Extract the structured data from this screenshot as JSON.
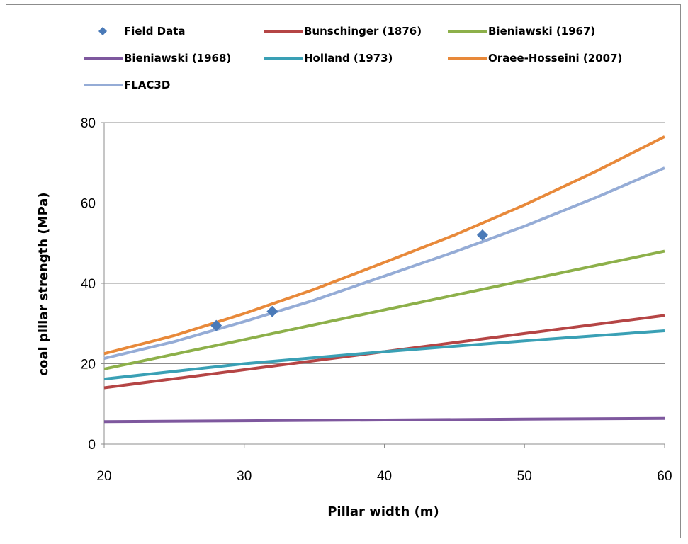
{
  "chart_data": {
    "type": "line",
    "xlabel": "Pillar width (m)",
    "ylabel": "coal pillar strength (MPa)",
    "xlim": [
      20,
      60
    ],
    "ylim": [
      0,
      80
    ],
    "x_ticks": [
      20,
      30,
      40,
      50,
      60
    ],
    "y_ticks": [
      0,
      20,
      40,
      60,
      80
    ],
    "grid": "horizontal",
    "legend_position": "top",
    "series": [
      {
        "name": "Field Data",
        "kind": "scatter",
        "marker": "diamond",
        "color": "#4a7ab8",
        "x": [
          28,
          32,
          47
        ],
        "y": [
          29.5,
          33.0,
          52.0
        ]
      },
      {
        "name": "Bunschinger (1876)",
        "kind": "line",
        "color": "#b54545",
        "x": [
          20,
          30,
          40,
          50,
          60
        ],
        "y": [
          14.0,
          18.5,
          23.0,
          27.5,
          32.0
        ]
      },
      {
        "name": "Bieniawski (1967)",
        "kind": "line",
        "color": "#8db04a",
        "x": [
          20,
          30,
          40,
          50,
          60
        ],
        "y": [
          18.7,
          26.0,
          33.4,
          40.7,
          48.0
        ]
      },
      {
        "name": "Bieniawski (1968)",
        "kind": "line",
        "color": "#7e589e",
        "x": [
          20,
          30,
          40,
          50,
          60
        ],
        "y": [
          5.6,
          5.8,
          6.0,
          6.2,
          6.4
        ]
      },
      {
        "name": "Holland (1973)",
        "kind": "line",
        "color": "#3aa0b5",
        "x": [
          20,
          30,
          40,
          50,
          60
        ],
        "y": [
          16.2,
          20.0,
          23.0,
          25.7,
          28.2
        ]
      },
      {
        "name": "Oraee-Hosseini (2007)",
        "kind": "line",
        "color": "#e8893a",
        "x": [
          20,
          25,
          30,
          35,
          40,
          45,
          50,
          55,
          60
        ],
        "y": [
          22.5,
          27.0,
          32.5,
          38.5,
          45.2,
          52.0,
          59.5,
          67.7,
          76.5
        ]
      },
      {
        "name": "FLAC3D",
        "kind": "line",
        "color": "#95acd6",
        "x": [
          20,
          25,
          30,
          35,
          40,
          45,
          50,
          55,
          60
        ],
        "y": [
          21.3,
          25.5,
          30.5,
          35.8,
          41.8,
          47.8,
          54.2,
          61.2,
          68.7
        ]
      }
    ]
  }
}
